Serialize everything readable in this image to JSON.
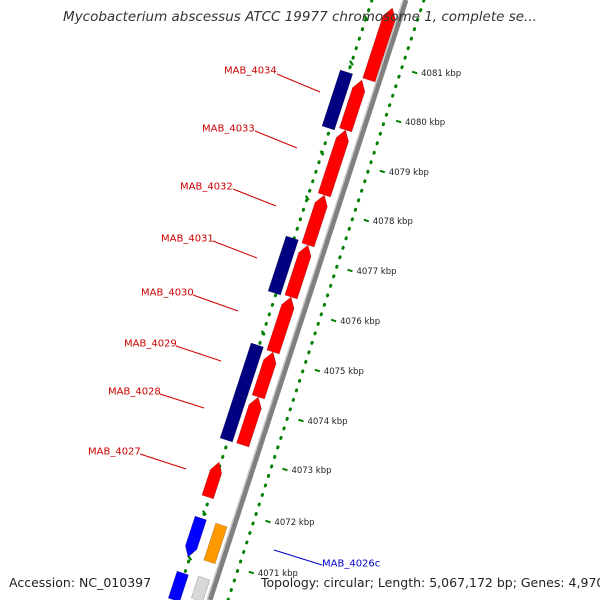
{
  "title": "Mycobacterium abscessus ATCC 19977 chromosome 1, complete se...",
  "footer": {
    "accession": "Accession: NC_010397",
    "summary": "Topology: circular; Length: 5,067,172 bp; Genes: 4,970"
  },
  "colors": {
    "forward_cds": "#ff0000",
    "reverse_cds": "#000080",
    "other_feature": "#0000ff",
    "highlight_feature": "#ff9900",
    "backbone": "#808080",
    "gc_ticks": "#008000",
    "label_red": "#cc0000",
    "label_blue": "#0000cc"
  },
  "scale": {
    "ticks": [
      "4081 kbp",
      "4080 kbp",
      "4079 kbp",
      "4078 kbp",
      "4077 kbp",
      "4076 kbp",
      "4075 kbp",
      "4074 kbp",
      "4073 kbp",
      "4072 kbp",
      "4071 kbp"
    ]
  },
  "genes": [
    {
      "label": "MAB_4034",
      "color": "label_red"
    },
    {
      "label": "MAB_4033",
      "color": "label_red"
    },
    {
      "label": "MAB_4032",
      "color": "label_red"
    },
    {
      "label": "MAB_4031",
      "color": "label_red"
    },
    {
      "label": "MAB_4030",
      "color": "label_red"
    },
    {
      "label": "MAB_4029",
      "color": "label_red"
    },
    {
      "label": "MAB_4028",
      "color": "label_red"
    },
    {
      "label": "MAB_4027",
      "color": "label_red"
    },
    {
      "label": "MAB_4026c",
      "color": "label_blue"
    }
  ]
}
